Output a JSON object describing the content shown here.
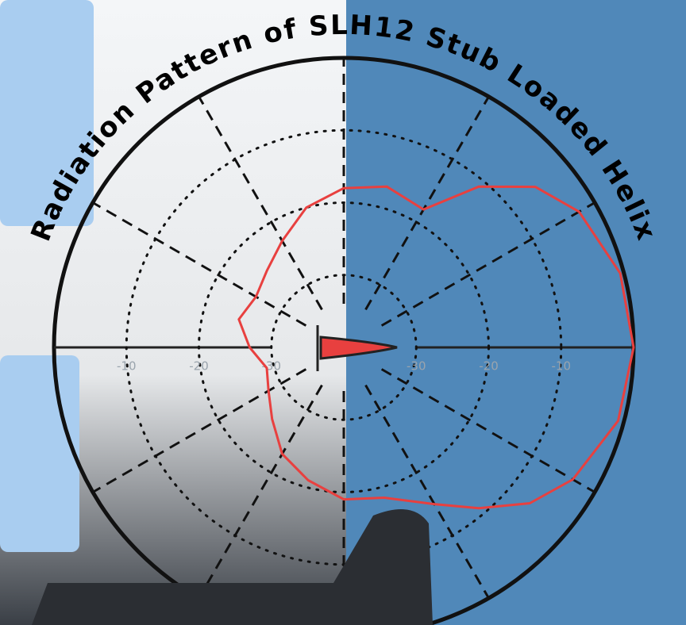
{
  "chart_data": {
    "type": "polar",
    "title": "Radiation Pattern of SLH12 Stub Loaded Helix",
    "theta": [
      0,
      15,
      30,
      40,
      50,
      60,
      75,
      90,
      105,
      120,
      135,
      150,
      165,
      180,
      195,
      210,
      225,
      240,
      255,
      270,
      285,
      300,
      310,
      320,
      330,
      345
    ],
    "values": [
      0,
      -0.5,
      -2.5,
      -5.5,
      -11,
      -18,
      -17,
      -18,
      -20,
      -23,
      -25,
      -26,
      -25,
      -27,
      -29,
      -28,
      -26,
      -23,
      -21,
      -19,
      -18.5,
      -15,
      -11,
      -6.5,
      -3.5,
      -0.8
    ],
    "color": "#e8403f",
    "rlim": [
      -40,
      0
    ],
    "rticks": [
      -10,
      -20,
      -30
    ],
    "grid": true
  }
}
